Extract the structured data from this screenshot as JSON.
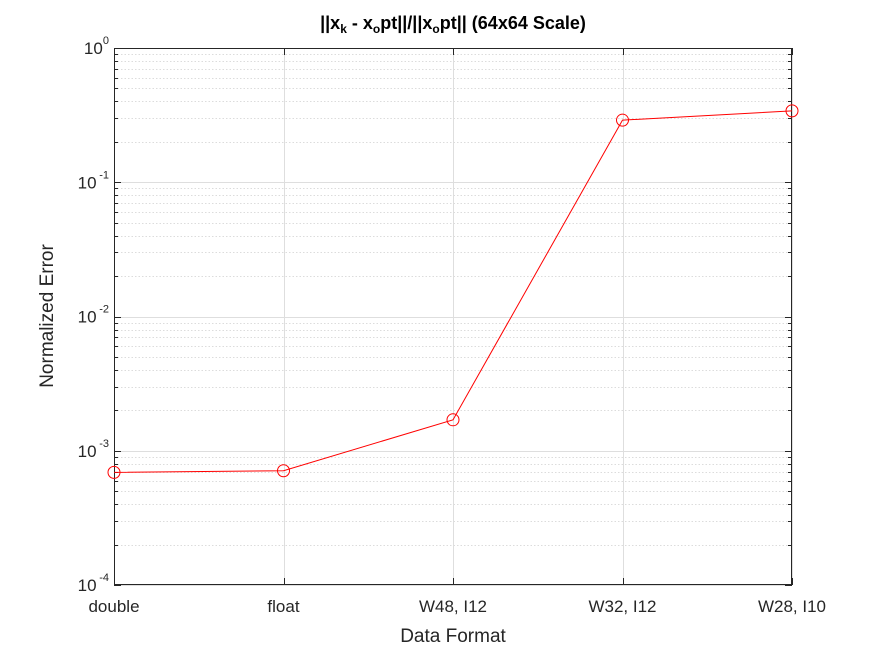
{
  "chart_data": {
    "type": "line",
    "title": {
      "parts": [
        {
          "text": "||x",
          "sub": false
        },
        {
          "text": "k",
          "sub": true
        },
        {
          "text": " - x",
          "sub": false
        },
        {
          "text": "o",
          "sub": true
        },
        {
          "text": "pt||/||x",
          "sub": false
        },
        {
          "text": "o",
          "sub": true
        },
        {
          "text": "pt|| (64x64 Scale)",
          "sub": false
        }
      ]
    },
    "xlabel": "Data Format",
    "ylabel": "Normalized Error",
    "categories": [
      "double",
      "float",
      "W48, I12",
      "W32, I12",
      "W28, I10"
    ],
    "yscale": "log",
    "ylim": [
      0.0001,
      1
    ],
    "yticks": [
      {
        "base": "10",
        "exp": "-4",
        "value": 0.0001
      },
      {
        "base": "10",
        "exp": "-3",
        "value": 0.001
      },
      {
        "base": "10",
        "exp": "-2",
        "value": 0.01
      },
      {
        "base": "10",
        "exp": "-1",
        "value": 0.1
      },
      {
        "base": "10",
        "exp": "0",
        "value": 1
      }
    ],
    "grid": true,
    "minor_grid": true,
    "series": [
      {
        "values": [
          0.00069,
          0.00071,
          0.0017,
          0.29,
          0.34
        ],
        "color": "#ff0000",
        "marker": "circle"
      }
    ]
  }
}
